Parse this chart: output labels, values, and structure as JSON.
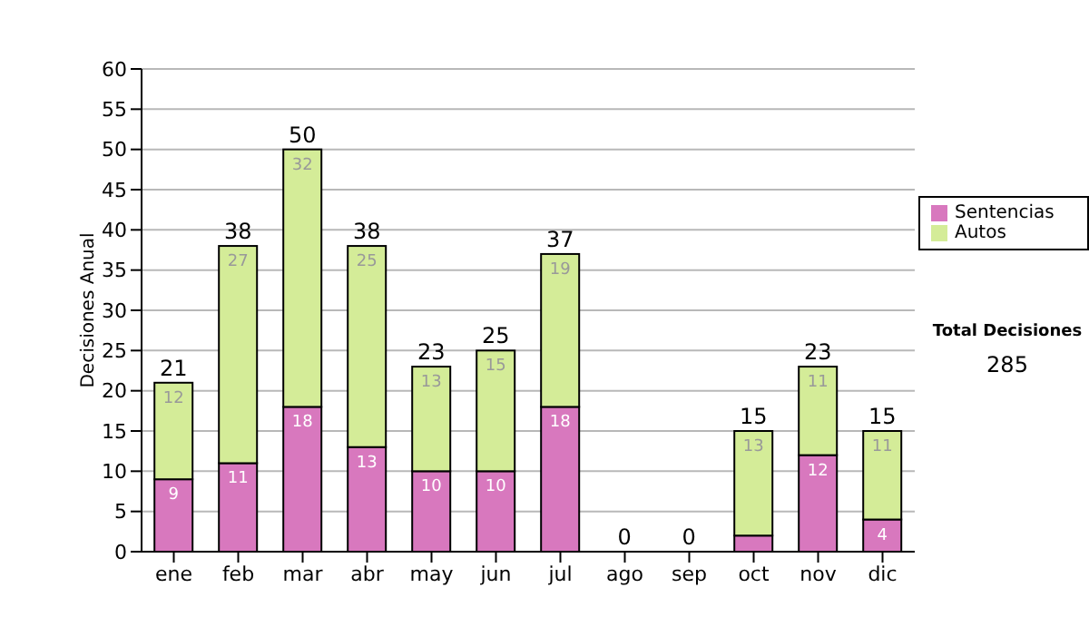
{
  "chart_data": {
    "type": "bar",
    "stacked": true,
    "ylabel": "Decisiones Anual",
    "categories": [
      "ene",
      "feb",
      "mar",
      "abr",
      "may",
      "jun",
      "jul",
      "ago",
      "sep",
      "oct",
      "nov",
      "dic"
    ],
    "series": [
      {
        "name": "Sentencias",
        "color": "#d878be",
        "values": [
          9,
          11,
          18,
          13,
          10,
          10,
          18,
          0,
          0,
          2,
          12,
          4
        ],
        "value_labels": [
          "9",
          "11",
          "18",
          "13",
          "10",
          "10",
          "18",
          null,
          null,
          null,
          "12",
          "4"
        ]
      },
      {
        "name": "Autos",
        "color": "#d4ec98",
        "values": [
          12,
          27,
          32,
          25,
          13,
          15,
          19,
          0,
          0,
          13,
          11,
          11
        ],
        "value_labels": [
          "12",
          "27",
          "32",
          "25",
          "13",
          "15",
          "19",
          null,
          null,
          "13",
          "11",
          "11"
        ]
      }
    ],
    "totals": [
      "21",
      "38",
      "50",
      "38",
      "23",
      "25",
      "37",
      "0",
      "0",
      "15",
      "23",
      "15"
    ],
    "ylim": [
      0,
      60
    ],
    "yticks": [
      0,
      5,
      10,
      15,
      20,
      25,
      30,
      35,
      40,
      45,
      50,
      55,
      60
    ],
    "grid": "y",
    "legend": "right",
    "annotations": [
      "Total Decisiones",
      "285"
    ]
  }
}
